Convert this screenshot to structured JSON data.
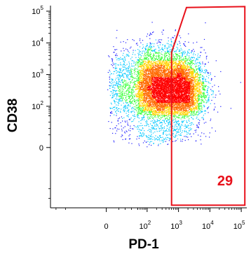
{
  "chart_data": {
    "type": "scatter",
    "subtype": "flow-cytometry-density-dot-plot",
    "xlabel": "PD-1",
    "ylabel": "CD38",
    "x_scale": "biexponential",
    "y_scale": "biexponential",
    "xlim": [
      -300,
      150000
    ],
    "ylim": [
      -400,
      150000
    ],
    "x_ticks": [
      {
        "value": 0,
        "base": "0",
        "exp": ""
      },
      {
        "value": 100,
        "base": "10",
        "exp": "2"
      },
      {
        "value": 1000,
        "base": "10",
        "exp": "3"
      },
      {
        "value": 10000,
        "base": "10",
        "exp": "4"
      },
      {
        "value": 100000,
        "base": "10",
        "exp": "5"
      }
    ],
    "y_ticks": [
      {
        "value": 0,
        "base": "0",
        "exp": ""
      },
      {
        "value": 100,
        "base": "10",
        "exp": "2"
      },
      {
        "value": 1000,
        "base": "10",
        "exp": "3"
      },
      {
        "value": 10000,
        "base": "10",
        "exp": "4"
      },
      {
        "value": 100000,
        "base": "10",
        "exp": "5"
      }
    ],
    "colormap": [
      "#1a1aff",
      "#00c8ff",
      "#3cff3c",
      "#ffd200",
      "#ff6a00",
      "#ff0000"
    ],
    "populations": [
      {
        "x_center": 200,
        "y_center": 280,
        "x_spread_decades": 0.55,
        "y_spread_decades": 0.55,
        "weight": 0.55
      },
      {
        "x_center": 1500,
        "y_center": 320,
        "x_spread_decades": 0.35,
        "y_spread_decades": 0.5,
        "weight": 0.3
      },
      {
        "x_center": 250,
        "y_center": 1500,
        "x_spread_decades": 0.6,
        "y_spread_decades": 0.45,
        "weight": 0.15
      }
    ],
    "gate": {
      "color": "#e8111b",
      "vertices": [
        {
          "x": 600,
          "y": -330
        },
        {
          "x": 600,
          "y": 5000
        },
        {
          "x": 1800,
          "y": 130000
        },
        {
          "x": 130000,
          "y": 140000
        },
        {
          "x": 130000,
          "y": -330
        }
      ],
      "label": "29"
    }
  }
}
